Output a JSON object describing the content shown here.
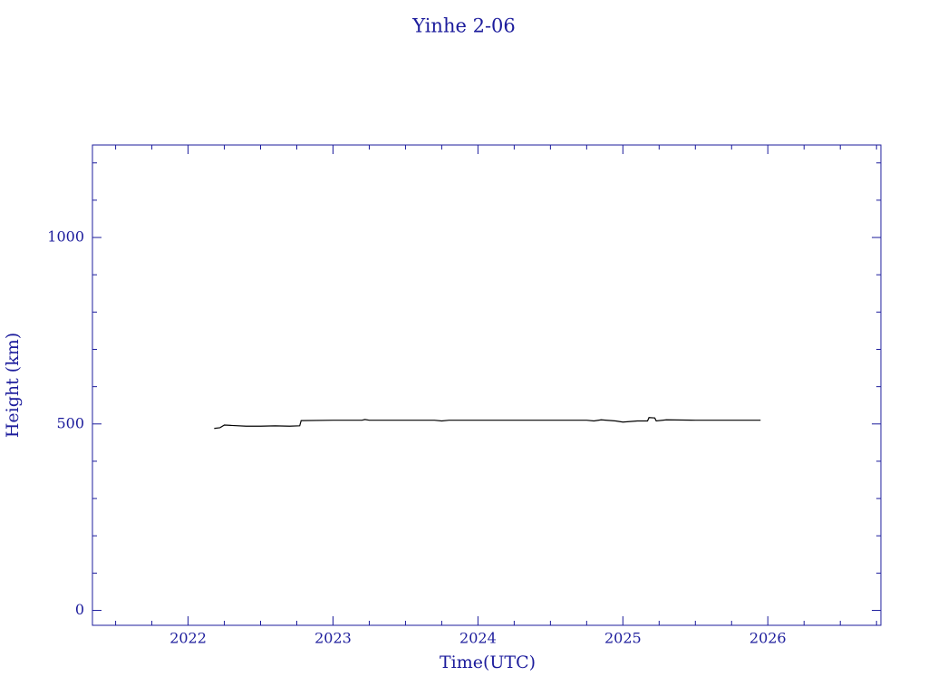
{
  "chart_data": {
    "type": "line",
    "title": "Yinhe 2-06",
    "x_label": "Time(UTC)",
    "y_label": "Height (km)",
    "axis_color": "#1c1c9c",
    "xlim": [
      2021.34,
      2026.78
    ],
    "xticks": [
      2022,
      2023,
      2024,
      2025,
      2026
    ],
    "x_minor_ticks": [
      2021.5,
      2021.75,
      2022.25,
      2022.5,
      2022.75,
      2023.25,
      2023.5,
      2023.75,
      2024.25,
      2024.5,
      2024.75,
      2025.25,
      2025.5,
      2025.75,
      2026.25,
      2026.5,
      2026.75
    ],
    "ylim": [
      -40,
      1248
    ],
    "yticks": [
      0,
      500,
      1000
    ],
    "y_minor_ticks": [
      100,
      200,
      300,
      400,
      600,
      700,
      800,
      900,
      1100,
      1200
    ],
    "series": [
      {
        "color": "#000000",
        "x": [
          2022.18,
          2022.22,
          2022.25,
          2022.3,
          2022.4,
          2022.5,
          2022.6,
          2022.7,
          2022.77,
          2022.78,
          2023.0,
          2023.2,
          2023.22,
          2023.25,
          2023.5,
          2023.7,
          2023.75,
          2023.8,
          2024.0,
          2024.4,
          2024.75,
          2024.8,
          2024.85,
          2024.95,
          2025.0,
          2025.1,
          2025.17,
          2025.18,
          2025.22,
          2025.23,
          2025.3,
          2025.5,
          2025.95
        ],
        "values": [
          488,
          490,
          497,
          496,
          494,
          494,
          495,
          494,
          495,
          509,
          510,
          510,
          512,
          510,
          510,
          510,
          508,
          510,
          510,
          510,
          510,
          508,
          511,
          508,
          505,
          508,
          508,
          517,
          516,
          508,
          511,
          510,
          510
        ]
      }
    ]
  }
}
